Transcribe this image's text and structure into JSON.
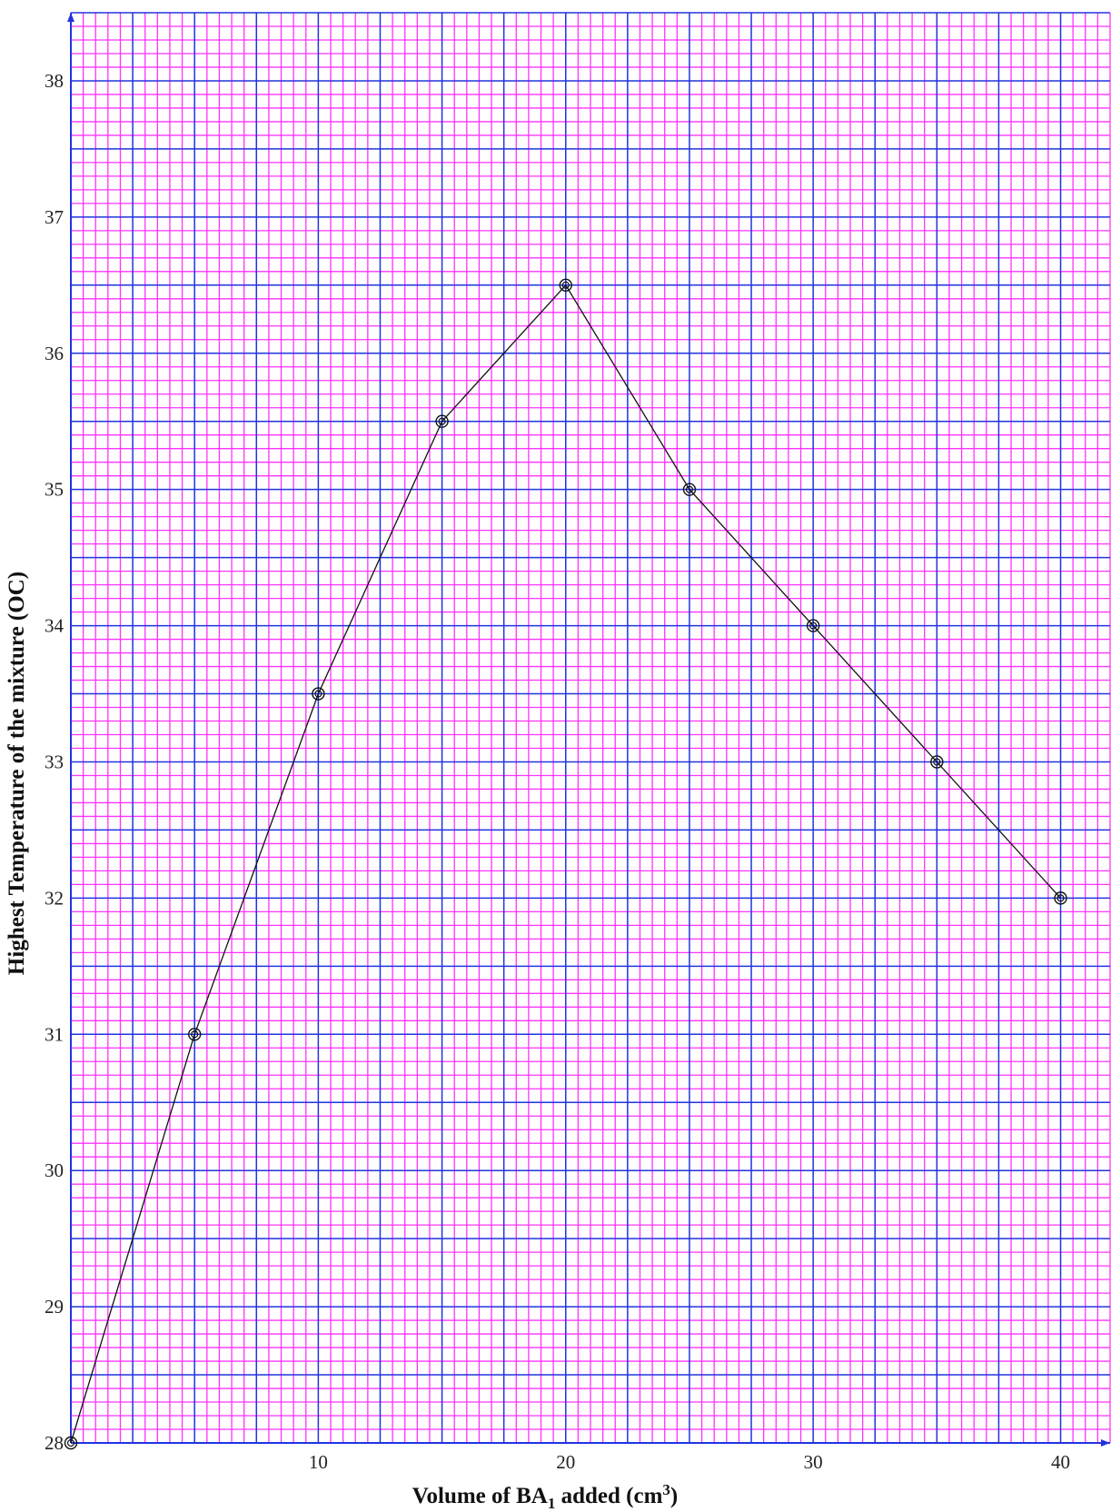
{
  "chart_data": {
    "type": "line",
    "title": "",
    "xlabel": "Volume of BA",
    "xlabel_subscript": "1",
    "xlabel_after": " added (cm",
    "xlabel_superscript": "3",
    "xlabel_end": ")",
    "ylabel": "Highest Temperature of the mixture (OC)",
    "xlim": [
      0,
      42
    ],
    "ylim": [
      28,
      38.5
    ],
    "xticks": [
      10,
      20,
      30,
      40
    ],
    "yticks": [
      28,
      29,
      30,
      31,
      32,
      33,
      34,
      35,
      36,
      37,
      38
    ],
    "x": [
      0,
      5,
      10,
      15,
      20,
      25,
      30,
      35,
      40
    ],
    "y": [
      28,
      31,
      33.5,
      35.5,
      36.5,
      35,
      34,
      33,
      32
    ],
    "grid": true,
    "colors": {
      "minor_grid": "#ff33ff",
      "major_grid": "#2233dd",
      "line": "#111111",
      "background": "#ffffff"
    }
  }
}
